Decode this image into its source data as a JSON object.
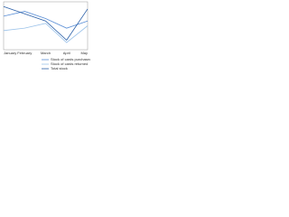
{
  "chart_data": {
    "type": "line",
    "categories": [
      "January",
      "February",
      "March",
      "April",
      "May"
    ],
    "series": [
      {
        "name": "Stock of cards purchased",
        "color": "#5b8fd6",
        "values": [
          70,
          80,
          65,
          45,
          60
        ]
      },
      {
        "name": "Stock of cards returned",
        "color": "#9cc3ea",
        "values": [
          40,
          45,
          55,
          15,
          50
        ]
      },
      {
        "name": "Total stock",
        "color": "#2a5fa8",
        "values": [
          90,
          75,
          60,
          20,
          85
        ]
      }
    ],
    "ylim": [
      0,
      100
    ]
  }
}
